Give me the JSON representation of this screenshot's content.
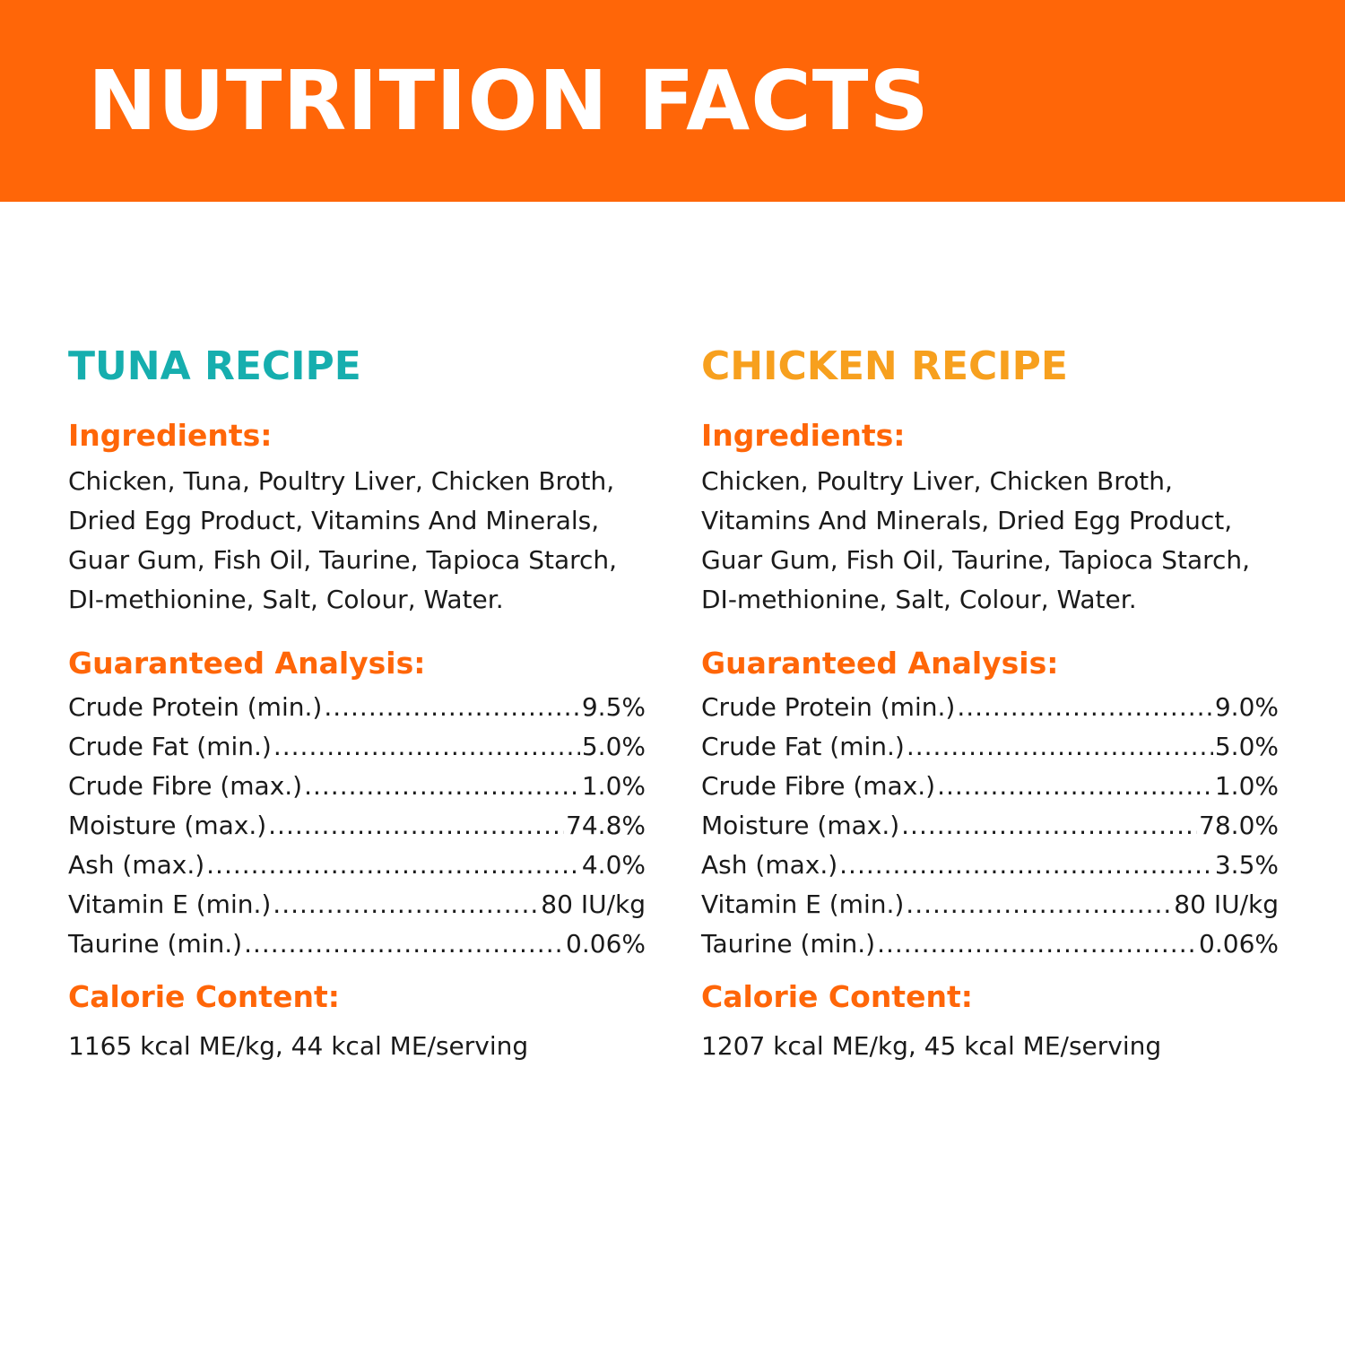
{
  "header": {
    "title": "NUTRITION FACTS"
  },
  "colors": {
    "banner": "#ff6608",
    "tuna_title": "#16aeae",
    "chicken_title": "#f7a01e",
    "section_heading": "#ff6608"
  },
  "recipes": [
    {
      "title": "TUNA RECIPE",
      "ingredients_heading": "Ingredients:",
      "ingredients": "Chicken, Tuna, Poultry Liver, Chicken Broth, Dried Egg Product, Vitamins And Minerals, Guar Gum, Fish Oil, Taurine, Tapioca Starch, DI-methionine, Salt, Colour, Water.",
      "analysis_heading": "Guaranteed Analysis:",
      "analysis": [
        {
          "label": "Crude Protein (min.)",
          "value": "9.5%"
        },
        {
          "label": "Crude Fat (min.)",
          "value": "5.0%"
        },
        {
          "label": "Crude Fibre (max.)",
          "value": "1.0%"
        },
        {
          "label": "Moisture (max.)",
          "value": "74.8%"
        },
        {
          "label": "Ash (max.)",
          "value": "4.0%"
        },
        {
          "label": "Vitamin E (min.)",
          "value": "80 IU/kg"
        },
        {
          "label": "Taurine (min.)",
          "value": "0.06%"
        }
      ],
      "calorie_heading": "Calorie Content:",
      "calorie": "1165 kcal ME/kg, 44 kcal ME/serving"
    },
    {
      "title": "CHICKEN RECIPE",
      "ingredients_heading": "Ingredients:",
      "ingredients": "Chicken, Poultry Liver, Chicken Broth, Vitamins And Minerals, Dried Egg Product, Guar Gum, Fish Oil, Taurine, Tapioca Starch, DI-methionine, Salt, Colour, Water.",
      "analysis_heading": "Guaranteed Analysis:",
      "analysis": [
        {
          "label": "Crude Protein (min.)",
          "value": "9.0%"
        },
        {
          "label": "Crude Fat (min.)",
          "value": "5.0%"
        },
        {
          "label": "Crude Fibre (max.)",
          "value": "1.0%"
        },
        {
          "label": "Moisture (max.)",
          "value": "78.0%"
        },
        {
          "label": "Ash (max.)",
          "value": "3.5%"
        },
        {
          "label": "Vitamin E (min.)",
          "value": "80 IU/kg"
        },
        {
          "label": "Taurine (min.)",
          "value": "0.06%"
        }
      ],
      "calorie_heading": "Calorie Content:",
      "calorie": "1207 kcal ME/kg, 45 kcal ME/serving"
    }
  ]
}
